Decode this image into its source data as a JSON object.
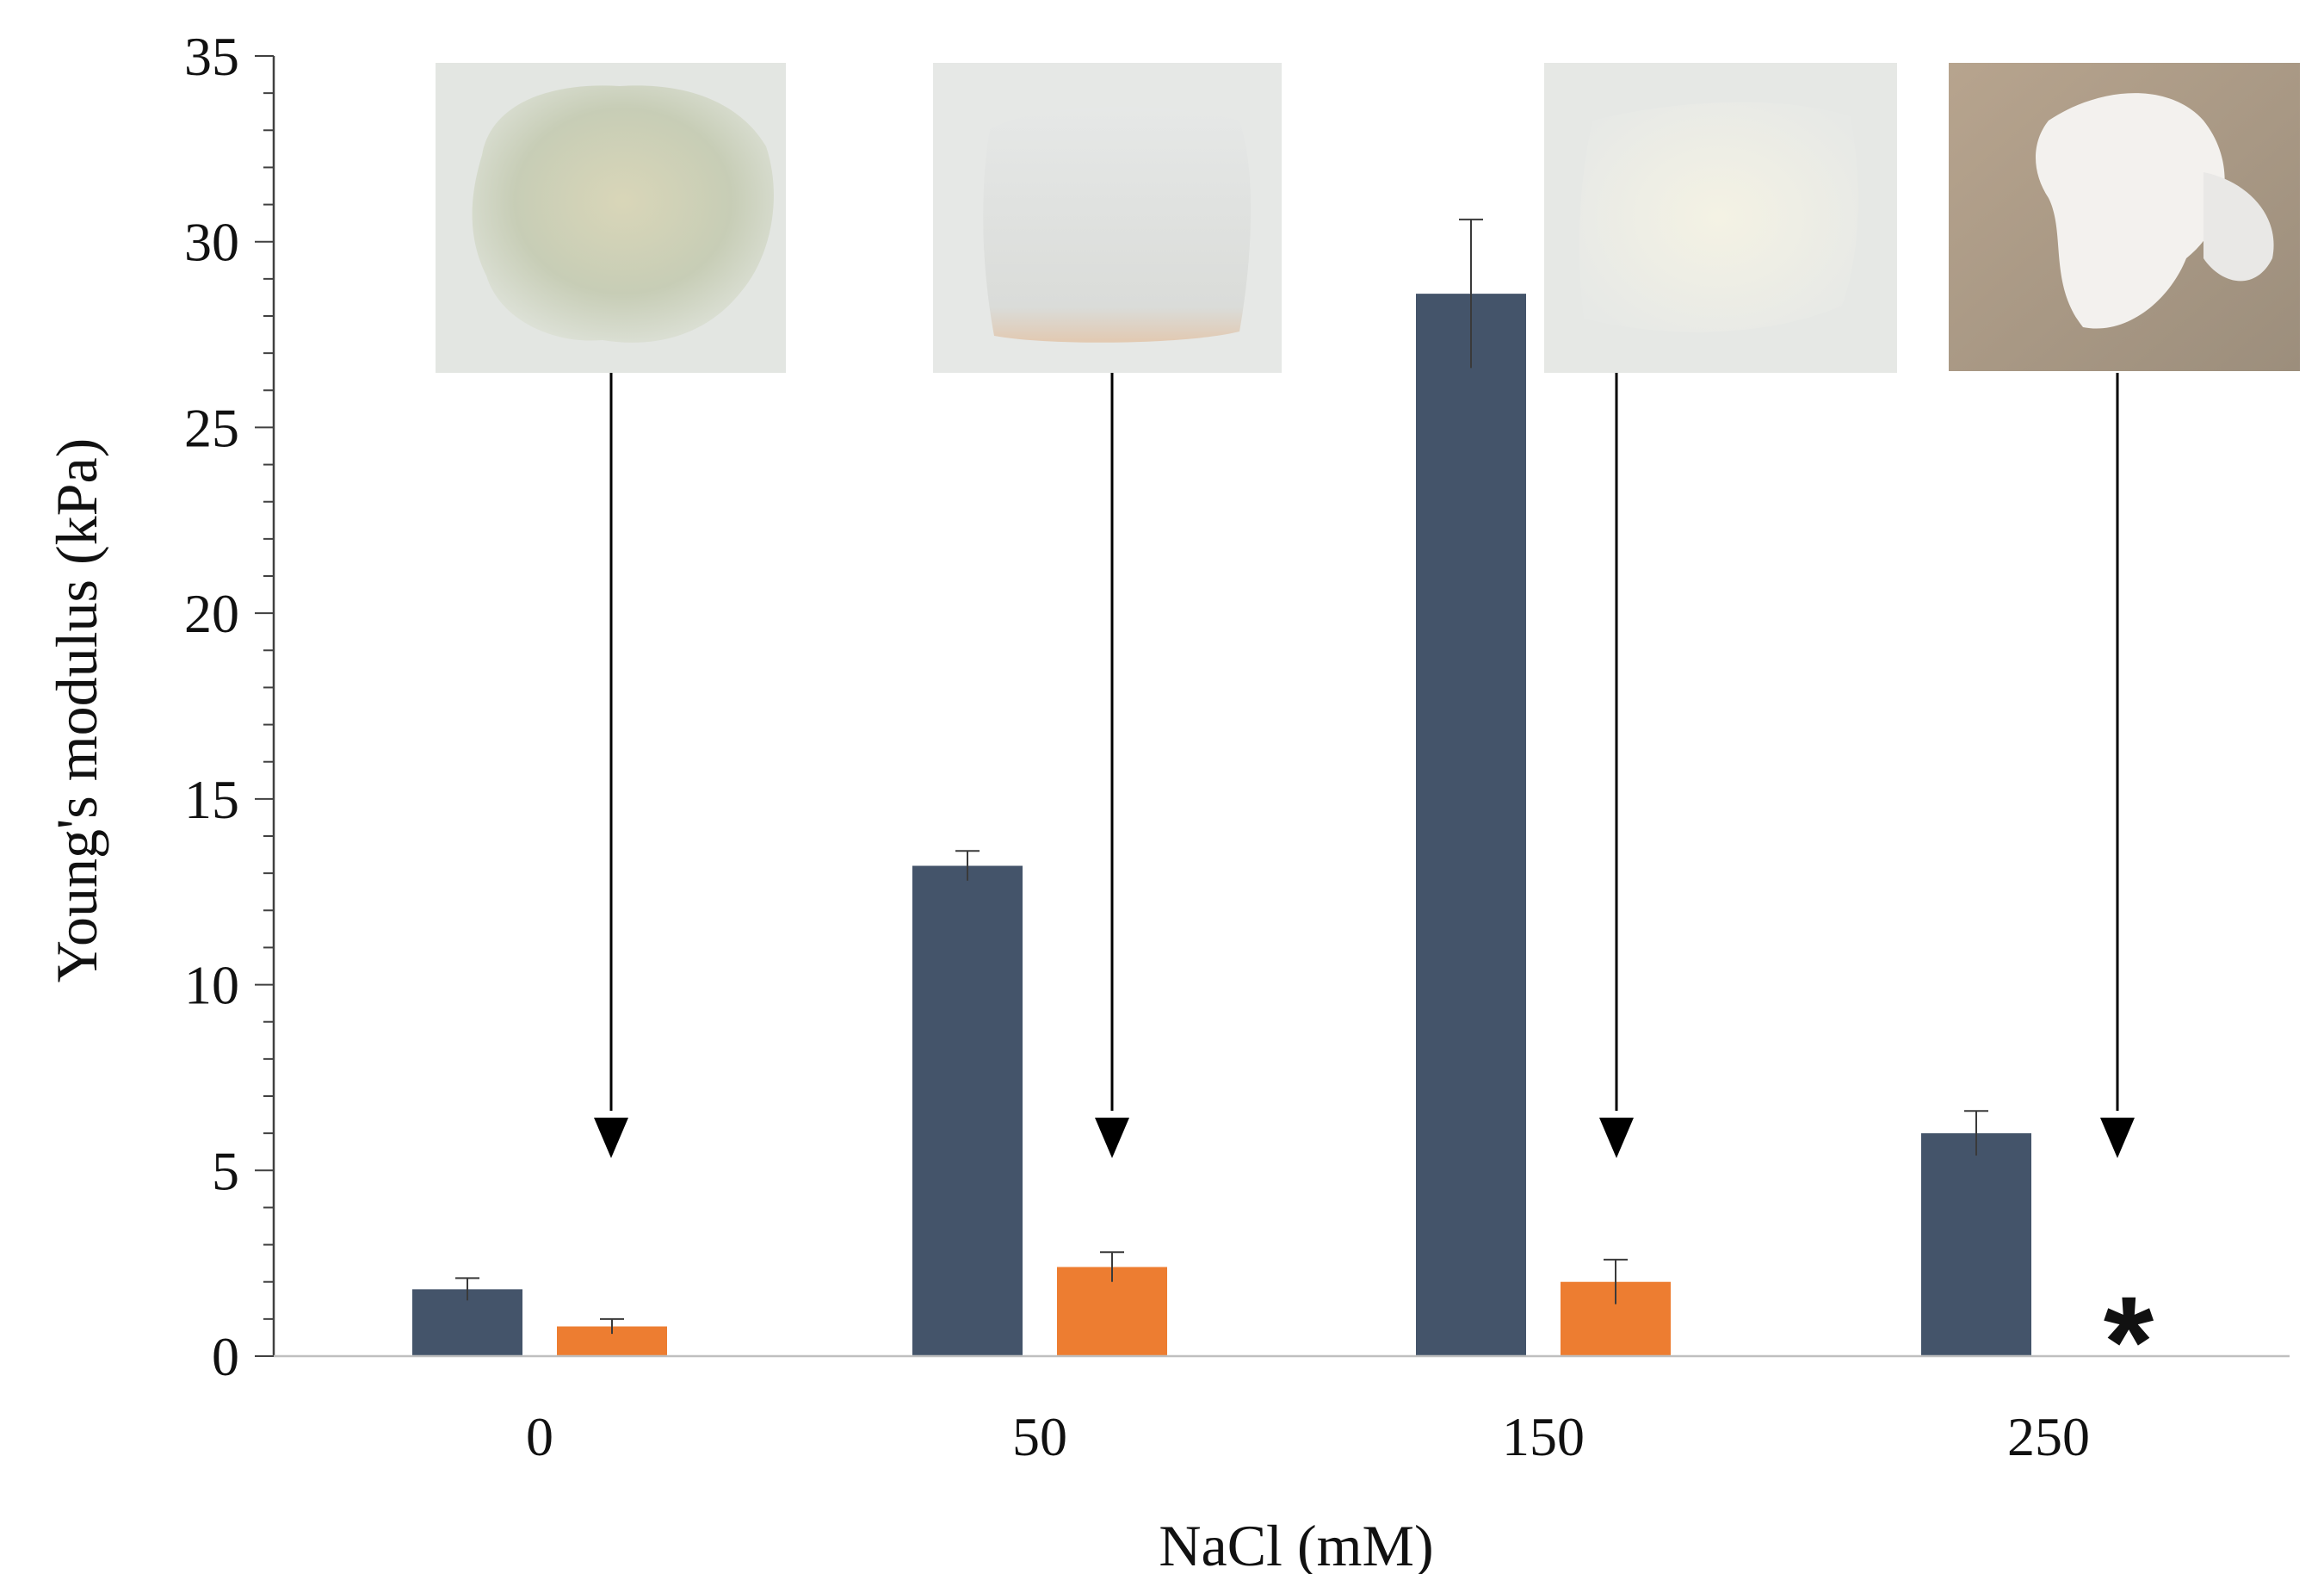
{
  "chart_data": {
    "type": "bar",
    "title": "",
    "xlabel": "NaCl (mM)",
    "ylabel": "Young's modulus (kPa)",
    "categories": [
      "0",
      "50",
      "150",
      "250"
    ],
    "ylim": [
      0,
      35
    ],
    "yticks": [
      0,
      5,
      10,
      15,
      20,
      25,
      30,
      35
    ],
    "grid": false,
    "legend": "none",
    "series": [
      {
        "color": "#44546A",
        "values": [
          1.8,
          13.2,
          28.6,
          6.0
        ],
        "errors": [
          0.3,
          0.4,
          2.0,
          0.6
        ]
      },
      {
        "color": "#ED7D31",
        "values": [
          0.8,
          2.4,
          2.0,
          null
        ],
        "errors": [
          0.2,
          0.4,
          0.6,
          null
        ]
      }
    ],
    "annotations": {
      "missing_marker": "*",
      "photo_insets": [
        "hydrogel-photo-0mM",
        "hydrogel-photo-50mM",
        "hydrogel-photo-150mM",
        "hydrogel-photo-250mM"
      ]
    }
  }
}
